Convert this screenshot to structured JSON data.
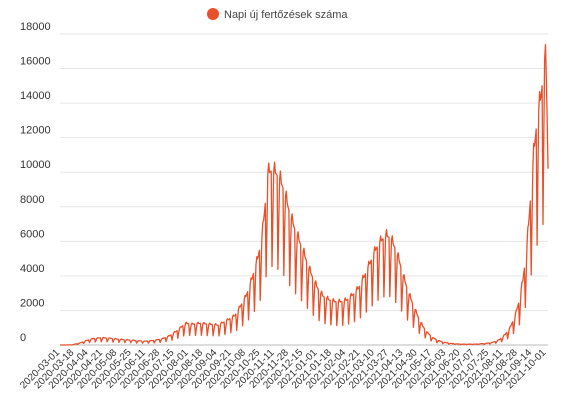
{
  "chart_data": {
    "type": "line",
    "legend": {
      "label": "Napi új fertőzések száma",
      "position": "top-center"
    },
    "series": [
      {
        "name": "Napi új fertőzések száma",
        "color": "#e8502a",
        "line_width": 1.3
      }
    ],
    "ylim": [
      0,
      18000
    ],
    "y_ticks": [
      0,
      2000,
      4000,
      6000,
      8000,
      10000,
      12000,
      14000,
      16000,
      18000
    ],
    "y_tick_labels": [
      "0",
      "2000",
      "4000",
      "6000",
      "8000",
      "10000",
      "12000",
      "14000",
      "16000",
      "18000"
    ],
    "grid": "horizontal",
    "x_tick_labels": [
      "2020-03-01",
      "2020-03-18",
      "2020-04-04",
      "2020-04-21",
      "2020-05-08",
      "2020-05-25",
      "2020-06-11",
      "2020-06-28",
      "2020-07-15",
      "2020-08-01",
      "2020-08-18",
      "2020-09-04",
      "2020-09-21",
      "2020-10-08",
      "2020-10-25",
      "2020-11-11",
      "2020-11-28",
      "2020-12-15",
      "2021-01-01",
      "2021-01-18",
      "2021-02-04",
      "2021-02-21",
      "2021-03-10",
      "2021-03-27",
      "2021-04-13",
      "2021-04-30",
      "2021-05-17",
      "2021-06-03",
      "2021-06-20",
      "2021-07-07",
      "2021-07-25",
      "2021-08-11",
      "2021-08-28",
      "2021-09-14",
      "2021-10-01"
    ],
    "x_start": "2020-03-01",
    "x_end": "2021-10-02",
    "x_tick_step_days": 17,
    "points": [
      [
        "2020-03-01",
        0
      ],
      [
        "2020-03-15",
        5
      ],
      [
        "2020-03-25",
        120
      ],
      [
        "2020-04-01",
        250
      ],
      [
        "2020-04-10",
        380
      ],
      [
        "2020-04-20",
        420
      ],
      [
        "2020-05-01",
        380
      ],
      [
        "2020-05-10",
        330
      ],
      [
        "2020-05-20",
        300
      ],
      [
        "2020-05-31",
        250
      ],
      [
        "2020-06-10",
        220
      ],
      [
        "2020-06-20",
        260
      ],
      [
        "2020-06-30",
        350
      ],
      [
        "2020-07-10",
        550
      ],
      [
        "2020-07-20",
        900
      ],
      [
        "2020-07-28",
        1250
      ],
      [
        "2020-08-05",
        1200
      ],
      [
        "2020-08-15",
        1250
      ],
      [
        "2020-08-25",
        1200
      ],
      [
        "2020-09-05",
        1150
      ],
      [
        "2020-09-15",
        1400
      ],
      [
        "2020-09-25",
        1700
      ],
      [
        "2020-10-01",
        2200
      ],
      [
        "2020-10-08",
        2800
      ],
      [
        "2020-10-15",
        3800
      ],
      [
        "2020-10-22",
        5000
      ],
      [
        "2020-10-27",
        6200
      ],
      [
        "2020-10-31",
        8200
      ],
      [
        "2020-11-03",
        9900
      ],
      [
        "2020-11-08",
        10100
      ],
      [
        "2020-11-13",
        9900
      ],
      [
        "2020-11-18",
        9500
      ],
      [
        "2020-11-23",
        8800
      ],
      [
        "2020-11-28",
        7800
      ],
      [
        "2020-12-03",
        7000
      ],
      [
        "2020-12-08",
        6300
      ],
      [
        "2020-12-13",
        5700
      ],
      [
        "2020-12-18",
        5000
      ],
      [
        "2020-12-23",
        4300
      ],
      [
        "2020-12-28",
        3700
      ],
      [
        "2021-01-02",
        3200
      ],
      [
        "2021-01-08",
        2800
      ],
      [
        "2021-01-15",
        2600
      ],
      [
        "2021-01-22",
        2500
      ],
      [
        "2021-01-29",
        2500
      ],
      [
        "2021-02-05",
        2600
      ],
      [
        "2021-02-12",
        2900
      ],
      [
        "2021-02-19",
        3300
      ],
      [
        "2021-02-26",
        4000
      ],
      [
        "2021-03-05",
        4800
      ],
      [
        "2021-03-12",
        5600
      ],
      [
        "2021-03-19",
        6100
      ],
      [
        "2021-03-24",
        6300
      ],
      [
        "2021-03-29",
        6200
      ],
      [
        "2021-04-03",
        5600
      ],
      [
        "2021-04-08",
        4900
      ],
      [
        "2021-04-13",
        4000
      ],
      [
        "2021-04-18",
        3200
      ],
      [
        "2021-04-24",
        2400
      ],
      [
        "2021-04-30",
        1700
      ],
      [
        "2021-05-06",
        1100
      ],
      [
        "2021-05-12",
        700
      ],
      [
        "2021-05-18",
        420
      ],
      [
        "2021-05-25",
        250
      ],
      [
        "2021-06-01",
        150
      ],
      [
        "2021-06-10",
        80
      ],
      [
        "2021-06-20",
        50
      ],
      [
        "2021-07-01",
        45
      ],
      [
        "2021-07-10",
        55
      ],
      [
        "2021-07-20",
        90
      ],
      [
        "2021-07-28",
        150
      ],
      [
        "2021-08-05",
        300
      ],
      [
        "2021-08-12",
        600
      ],
      [
        "2021-08-18",
        1000
      ],
      [
        "2021-08-24",
        1700
      ],
      [
        "2021-08-29",
        2600
      ],
      [
        "2021-09-02",
        3700
      ],
      [
        "2021-09-06",
        5200
      ],
      [
        "2021-09-09",
        7000
      ],
      [
        "2021-09-12",
        9000
      ],
      [
        "2021-09-15",
        11000
      ],
      [
        "2021-09-18",
        12500
      ],
      [
        "2021-09-21",
        13500
      ],
      [
        "2021-09-24",
        14500
      ],
      [
        "2021-09-26",
        15500
      ],
      [
        "2021-09-28",
        16500
      ],
      [
        "2021-09-29",
        16400
      ],
      [
        "2021-09-30",
        15500
      ],
      [
        "2021-10-01",
        13000
      ],
      [
        "2021-10-02",
        10200
      ]
    ],
    "weekly_oscillation": "values dip sharply on one day each week (sawtooth pattern)"
  }
}
